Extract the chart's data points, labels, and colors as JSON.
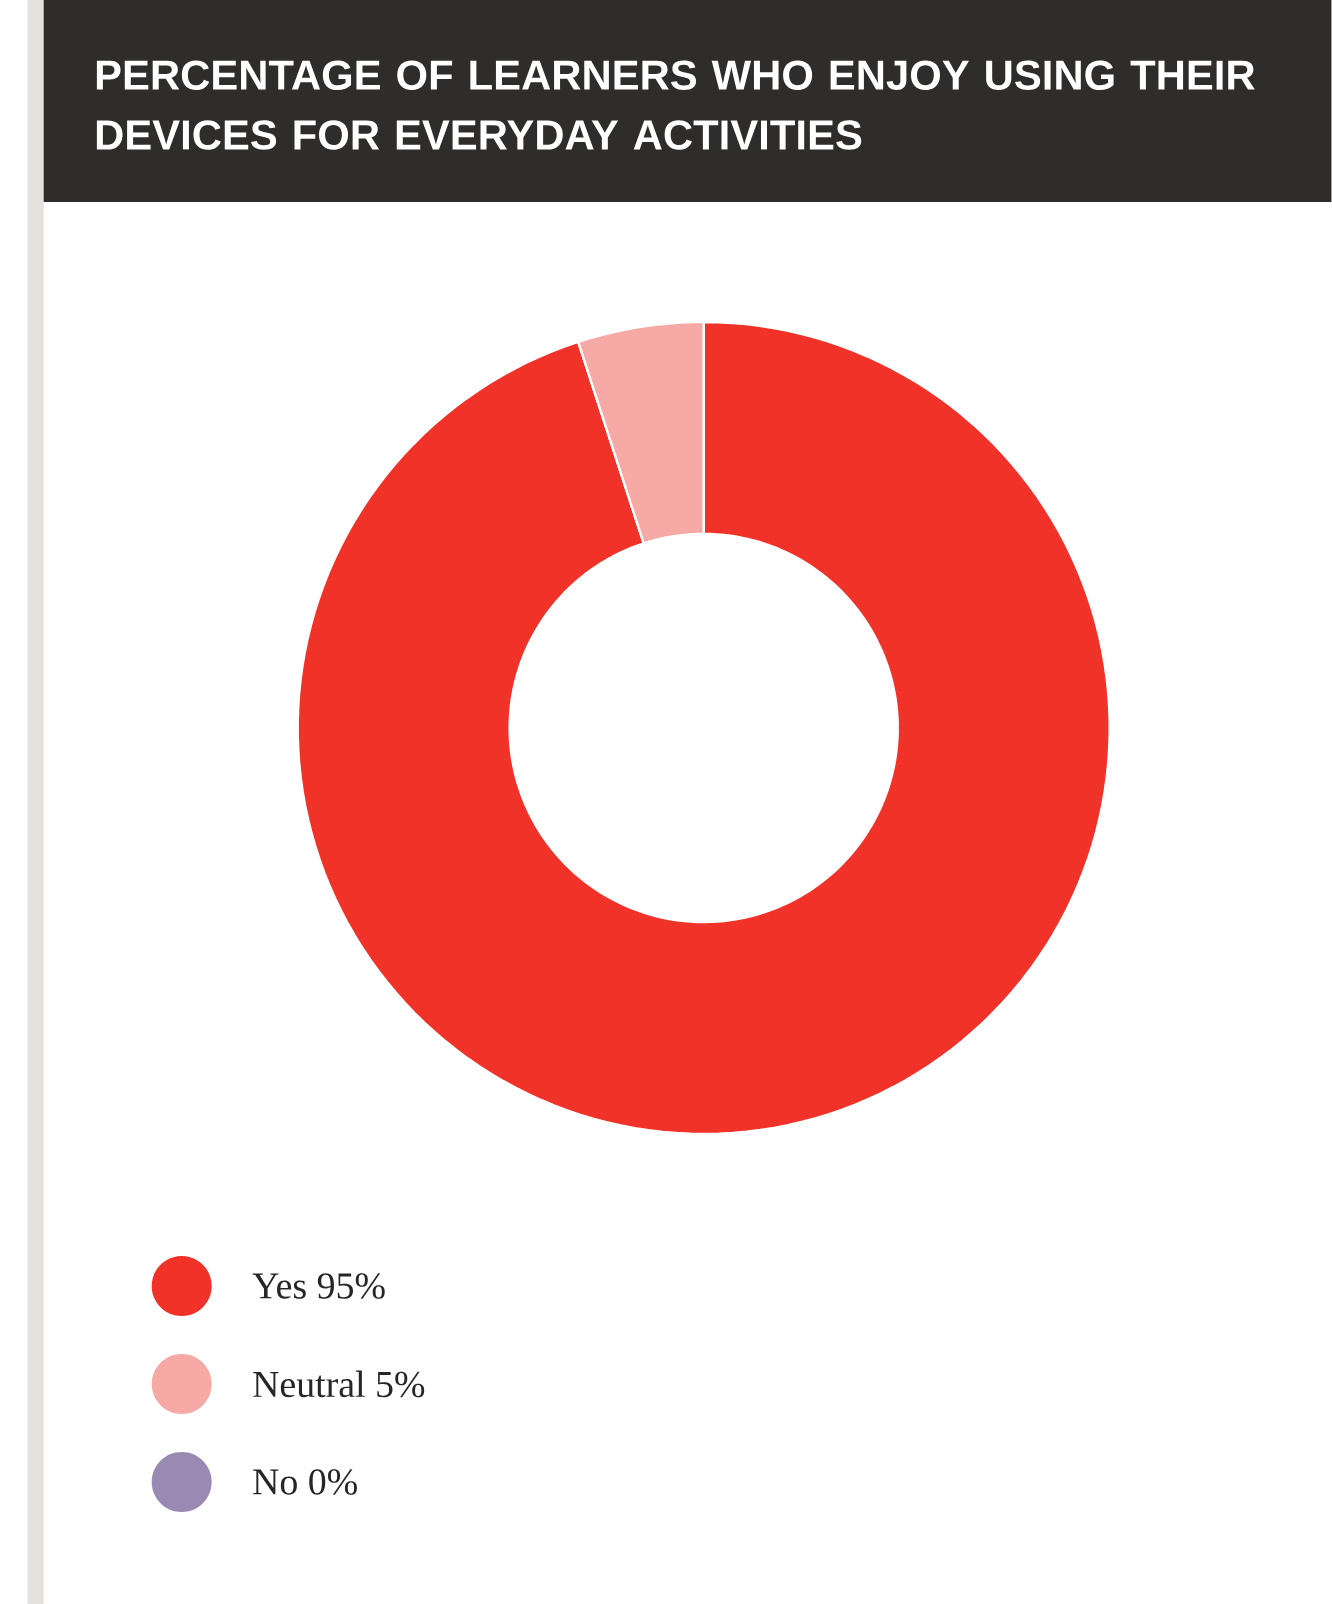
{
  "chart_data": {
    "type": "donut",
    "title": "PERCENTAGE OF LEARNERS WHO ENJOY USING THEIR DEVICES FOR EVERYDAY ACTIVITIES",
    "categories": [
      "Yes",
      "Neutral",
      "No"
    ],
    "values": [
      95,
      5,
      0
    ],
    "value_labels": [
      "95%",
      "5%",
      "0%"
    ],
    "colors": [
      "#f03228",
      "#f6a9a5",
      "#9a8ab3"
    ],
    "legend": "bottom left"
  }
}
